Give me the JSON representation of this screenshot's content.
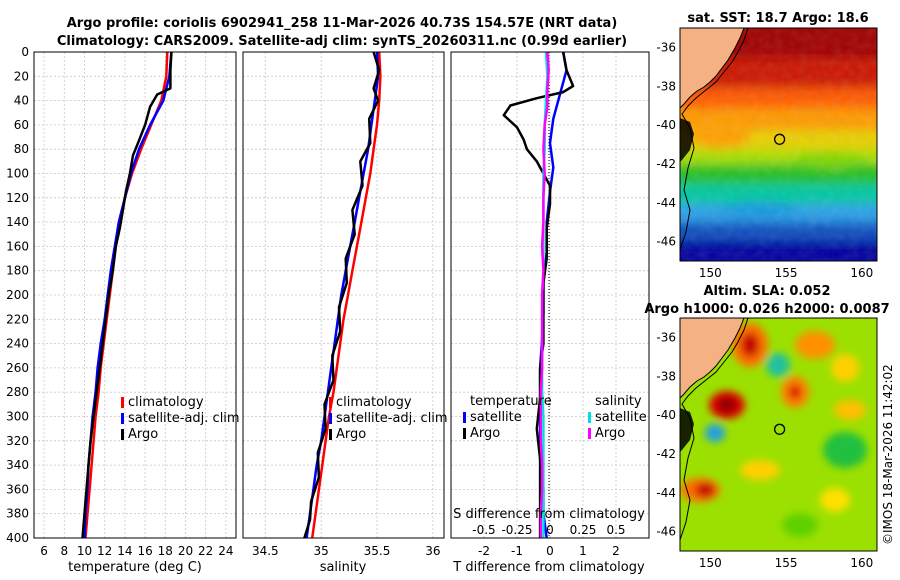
{
  "header": {
    "line1": "Argo profile: coriolis 6902941_258 11-Mar-2026 40.73S 154.57E (NRT data)",
    "line2": "Climatology: CARS2009. Satellite-adj clim: synTS_20260311.nc (0.99d earlier)"
  },
  "colors": {
    "climatology": "#ff0000",
    "satellite": "#0000ff",
    "argo": "#000000",
    "salinity_satellite": "#00e0e0",
    "salinity_argo": "#ff00ff",
    "land": "#f4b183",
    "grid": "#c8c8c8"
  },
  "copyright": "©IMOS 18-Mar-2026 11:42:02",
  "chart_data": [
    {
      "type": "line",
      "name": "temperature-profile",
      "xlabel": "temperature (deg C)",
      "xlim": [
        5,
        25
      ],
      "xticks": [
        6,
        8,
        10,
        12,
        14,
        16,
        18,
        20,
        22,
        24
      ],
      "ylim": [
        0,
        400
      ],
      "yticks": [
        0,
        20,
        40,
        60,
        80,
        100,
        120,
        140,
        160,
        180,
        200,
        220,
        240,
        260,
        280,
        300,
        320,
        340,
        360,
        380,
        400
      ],
      "grid": true,
      "legend": {
        "placement": "lower-right",
        "entries": [
          "climatology",
          "satellite-adj. clim",
          "Argo"
        ]
      },
      "series": [
        {
          "name": "climatology",
          "color": "#ff0000",
          "points": [
            [
              18.2,
              0
            ],
            [
              18.1,
              20
            ],
            [
              17.6,
              40
            ],
            [
              16.6,
              60
            ],
            [
              15.6,
              80
            ],
            [
              14.7,
              100
            ],
            [
              14.0,
              120
            ],
            [
              13.5,
              140
            ],
            [
              13.1,
              160
            ],
            [
              12.8,
              180
            ],
            [
              12.5,
              200
            ],
            [
              12.2,
              220
            ],
            [
              11.9,
              240
            ],
            [
              11.6,
              260
            ],
            [
              11.4,
              280
            ],
            [
              11.1,
              300
            ],
            [
              10.9,
              320
            ],
            [
              10.7,
              340
            ],
            [
              10.5,
              360
            ],
            [
              10.3,
              380
            ],
            [
              10.1,
              400
            ]
          ]
        },
        {
          "name": "satellite-adj. clim",
          "color": "#0000ff",
          "points": [
            [
              18.6,
              0
            ],
            [
              18.4,
              20
            ],
            [
              17.8,
              40
            ],
            [
              16.5,
              60
            ],
            [
              15.4,
              80
            ],
            [
              14.6,
              100
            ],
            [
              14.0,
              120
            ],
            [
              13.4,
              140
            ],
            [
              13.0,
              160
            ],
            [
              12.6,
              180
            ],
            [
              12.3,
              200
            ],
            [
              12.0,
              220
            ],
            [
              11.6,
              240
            ],
            [
              11.3,
              260
            ],
            [
              11.1,
              280
            ],
            [
              10.8,
              300
            ],
            [
              10.6,
              320
            ],
            [
              10.4,
              340
            ],
            [
              10.3,
              360
            ],
            [
              10.1,
              380
            ],
            [
              10.0,
              400
            ]
          ]
        },
        {
          "name": "Argo",
          "color": "#000000",
          "points": [
            [
              18.6,
              0
            ],
            [
              18.5,
              15
            ],
            [
              18.5,
              30
            ],
            [
              17.2,
              35
            ],
            [
              16.5,
              45
            ],
            [
              16.0,
              60
            ],
            [
              15.3,
              75
            ],
            [
              14.8,
              85
            ],
            [
              14.5,
              100
            ],
            [
              14.1,
              115
            ],
            [
              13.8,
              130
            ],
            [
              13.5,
              145
            ],
            [
              13.1,
              160
            ],
            [
              12.8,
              180
            ],
            [
              12.4,
              200
            ],
            [
              12.1,
              220
            ],
            [
              11.8,
              240
            ],
            [
              11.5,
              260
            ],
            [
              11.2,
              280
            ],
            [
              10.9,
              300
            ],
            [
              10.6,
              320
            ],
            [
              10.4,
              340
            ],
            [
              10.2,
              360
            ],
            [
              10.0,
              380
            ],
            [
              9.8,
              400
            ]
          ]
        }
      ]
    },
    {
      "type": "line",
      "name": "salinity-profile",
      "xlabel": "salinity",
      "xlim": [
        34.3,
        36.1
      ],
      "xticks": [
        34.5,
        35,
        35.5,
        36
      ],
      "xtick_labels": [
        "34.5",
        "35",
        "35.5",
        "36"
      ],
      "ylim": [
        0,
        400
      ],
      "grid": true,
      "legend": {
        "placement": "lower-right",
        "entries": [
          "climatology",
          "satellite-adj. clim",
          "Argo"
        ]
      },
      "series": [
        {
          "name": "climatology",
          "color": "#ff0000",
          "points": [
            [
              35.52,
              0
            ],
            [
              35.53,
              20
            ],
            [
              35.52,
              40
            ],
            [
              35.5,
              60
            ],
            [
              35.47,
              80
            ],
            [
              35.44,
              100
            ],
            [
              35.4,
              120
            ],
            [
              35.36,
              140
            ],
            [
              35.32,
              160
            ],
            [
              35.28,
              180
            ],
            [
              35.24,
              200
            ],
            [
              35.2,
              220
            ],
            [
              35.17,
              240
            ],
            [
              35.14,
              260
            ],
            [
              35.11,
              280
            ],
            [
              35.07,
              300
            ],
            [
              35.04,
              320
            ],
            [
              35.01,
              340
            ],
            [
              34.98,
              360
            ],
            [
              34.95,
              380
            ],
            [
              34.92,
              400
            ]
          ]
        },
        {
          "name": "satellite-adj. clim",
          "color": "#0000ff",
          "points": [
            [
              35.5,
              0
            ],
            [
              35.51,
              20
            ],
            [
              35.48,
              40
            ],
            [
              35.45,
              60
            ],
            [
              35.42,
              80
            ],
            [
              35.38,
              100
            ],
            [
              35.34,
              120
            ],
            [
              35.3,
              140
            ],
            [
              35.26,
              160
            ],
            [
              35.22,
              180
            ],
            [
              35.18,
              200
            ],
            [
              35.15,
              220
            ],
            [
              35.12,
              240
            ],
            [
              35.09,
              260
            ],
            [
              35.06,
              280
            ],
            [
              35.03,
              300
            ],
            [
              35.0,
              320
            ],
            [
              34.96,
              340
            ],
            [
              34.93,
              360
            ],
            [
              34.9,
              380
            ],
            [
              34.87,
              400
            ]
          ]
        },
        {
          "name": "Argo",
          "color": "#000000",
          "points": [
            [
              35.47,
              0
            ],
            [
              35.52,
              15
            ],
            [
              35.47,
              30
            ],
            [
              35.51,
              40
            ],
            [
              35.43,
              55
            ],
            [
              35.44,
              75
            ],
            [
              35.35,
              90
            ],
            [
              35.37,
              110
            ],
            [
              35.28,
              130
            ],
            [
              35.3,
              150
            ],
            [
              35.22,
              170
            ],
            [
              35.23,
              190
            ],
            [
              35.16,
              210
            ],
            [
              35.17,
              230
            ],
            [
              35.1,
              250
            ],
            [
              35.11,
              270
            ],
            [
              35.03,
              290
            ],
            [
              35.04,
              310
            ],
            [
              34.97,
              330
            ],
            [
              34.98,
              350
            ],
            [
              34.91,
              370
            ],
            [
              34.9,
              385
            ],
            [
              34.85,
              400
            ]
          ]
        }
      ]
    },
    {
      "type": "line",
      "name": "difference-profile",
      "xlabel": "T difference from climatology",
      "xlim": [
        -3,
        3
      ],
      "xticks": [
        -2,
        -1,
        0,
        1,
        2
      ],
      "xtick_labels": [
        "-2",
        "-1",
        "0",
        "1",
        "2"
      ],
      "s_axis_label": "S difference from climatology",
      "s_xticks": [
        -0.5,
        -0.25,
        0,
        0.25,
        0.5
      ],
      "s_xtick_labels": [
        "-0.5",
        "-0.25",
        "0",
        "0.25",
        "0.5"
      ],
      "s_scale_factor": 4,
      "ylim": [
        0,
        400
      ],
      "grid": true,
      "legend_temperature": {
        "placement": "lower-left",
        "title": "temperature",
        "entries": [
          "satellite",
          "Argo"
        ]
      },
      "legend_salinity": {
        "placement": "lower-right",
        "title": "salinity",
        "entries": [
          "satellite",
          "Argo"
        ]
      },
      "series": [
        {
          "name": "temperature satellite",
          "color": "#0000ff",
          "points": [
            [
              0.4,
              0
            ],
            [
              0.5,
              15
            ],
            [
              0.3,
              35
            ],
            [
              0.1,
              55
            ],
            [
              0.0,
              75
            ],
            [
              0.1,
              95
            ],
            [
              0.0,
              115
            ],
            [
              -0.1,
              140
            ],
            [
              -0.1,
              165
            ],
            [
              -0.2,
              190
            ],
            [
              -0.2,
              215
            ],
            [
              -0.25,
              240
            ],
            [
              -0.3,
              260
            ],
            [
              -0.3,
              285
            ],
            [
              -0.3,
              310
            ],
            [
              -0.3,
              335
            ],
            [
              -0.2,
              360
            ],
            [
              -0.2,
              380
            ],
            [
              -0.1,
              400
            ]
          ]
        },
        {
          "name": "temperature Argo",
          "color": "#000000",
          "points": [
            [
              0.4,
              0
            ],
            [
              0.5,
              15
            ],
            [
              0.7,
              28
            ],
            [
              0.4,
              33
            ],
            [
              -0.4,
              38
            ],
            [
              -1.2,
              44
            ],
            [
              -1.4,
              52
            ],
            [
              -1.0,
              62
            ],
            [
              -0.8,
              72
            ],
            [
              -0.7,
              80
            ],
            [
              -0.4,
              90
            ],
            [
              -0.2,
              100
            ],
            [
              0.0,
              110
            ],
            [
              0.0,
              125
            ],
            [
              -0.1,
              145
            ],
            [
              -0.1,
              170
            ],
            [
              -0.2,
              190
            ],
            [
              -0.2,
              215
            ],
            [
              -0.2,
              240
            ],
            [
              -0.3,
              260
            ],
            [
              -0.3,
              285
            ],
            [
              -0.4,
              310
            ],
            [
              -0.3,
              335
            ],
            [
              -0.3,
              360
            ],
            [
              -0.3,
              380
            ],
            [
              -0.3,
              400
            ]
          ]
        },
        {
          "name": "salinity satellite",
          "color": "#00e0e0",
          "points": [
            [
              -0.03,
              0
            ],
            [
              -0.02,
              20
            ],
            [
              -0.03,
              40
            ],
            [
              -0.04,
              60
            ],
            [
              -0.04,
              80
            ],
            [
              -0.05,
              100
            ],
            [
              -0.05,
              120
            ],
            [
              -0.05,
              140
            ],
            [
              -0.05,
              160
            ],
            [
              -0.05,
              180
            ],
            [
              -0.06,
              200
            ],
            [
              -0.06,
              220
            ],
            [
              -0.06,
              240
            ],
            [
              -0.06,
              260
            ],
            [
              -0.06,
              280
            ],
            [
              -0.05,
              300
            ],
            [
              -0.05,
              320
            ],
            [
              -0.05,
              340
            ],
            [
              -0.05,
              360
            ],
            [
              -0.05,
              380
            ],
            [
              -0.05,
              400
            ]
          ]
        },
        {
          "name": "salinity Argo",
          "color": "#ff00ff",
          "points": [
            [
              -0.02,
              0
            ],
            [
              -0.01,
              15
            ],
            [
              -0.02,
              30
            ],
            [
              -0.02,
              45
            ],
            [
              -0.04,
              60
            ],
            [
              -0.05,
              80
            ],
            [
              -0.04,
              100
            ],
            [
              -0.05,
              120
            ],
            [
              -0.05,
              140
            ],
            [
              -0.06,
              160
            ],
            [
              -0.05,
              180
            ],
            [
              -0.06,
              200
            ],
            [
              -0.06,
              220
            ],
            [
              -0.06,
              240
            ],
            [
              -0.06,
              260
            ],
            [
              -0.07,
              280
            ],
            [
              -0.07,
              300
            ],
            [
              -0.07,
              320
            ],
            [
              -0.06,
              340
            ],
            [
              -0.06,
              360
            ],
            [
              -0.07,
              380
            ],
            [
              -0.07,
              400
            ]
          ]
        }
      ]
    },
    {
      "type": "heatmap",
      "name": "sst-map",
      "title": "sat. SST: 18.7 Argo: 18.6",
      "xlim": [
        148,
        161
      ],
      "ylim": [
        -47,
        -35
      ],
      "xticks": [
        150,
        155,
        160
      ],
      "yticks": [
        -36,
        -38,
        -40,
        -42,
        -44,
        -46
      ],
      "argo_position": [
        154.57,
        -40.73
      ],
      "colormap": "jet"
    },
    {
      "type": "heatmap",
      "name": "sla-map",
      "title_line1": "Altim. SLA: 0.052",
      "title_line2": "Argo h1000: 0.026 h2000: 0.0087",
      "xlim": [
        148,
        161
      ],
      "ylim": [
        -47,
        -35
      ],
      "xticks": [
        150,
        155,
        160
      ],
      "yticks": [
        -36,
        -38,
        -40,
        -42,
        -44,
        -46
      ],
      "argo_position": [
        154.57,
        -40.73
      ],
      "colormap": "jet"
    }
  ]
}
